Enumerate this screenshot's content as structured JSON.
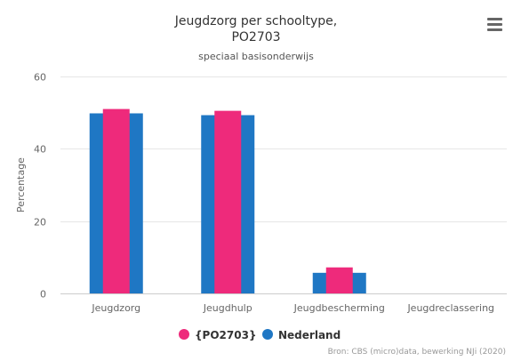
{
  "chart_data": {
    "type": "bar",
    "title_line1": "Jeugdzorg per schooltype,",
    "title_line2": "PO2703",
    "subtitle": "speciaal basisonderwijs",
    "ylabel": "Percentage",
    "xlabel": "",
    "ylim": [
      0,
      60
    ],
    "yticks": [
      "0",
      "20",
      "40",
      "60"
    ],
    "grid": true,
    "legend_position": "bottom-center",
    "categories": [
      "Jeugdzorg",
      "Jeugdhulp",
      "Jeugdbescherming",
      "Jeugdreclassering"
    ],
    "series": [
      {
        "name": "Nederland",
        "color": "#1f77c4",
        "values": [
          49.8,
          49.3,
          5.7,
          0
        ]
      },
      {
        "name": "{PO2703}",
        "color": "#ee2a7b",
        "values": [
          51,
          50.5,
          7.2,
          0
        ]
      }
    ],
    "credits": "Bron: CBS (micro)data, bewerking NJi (2020)"
  },
  "menu": {
    "icon": "hamburger-menu-icon"
  }
}
